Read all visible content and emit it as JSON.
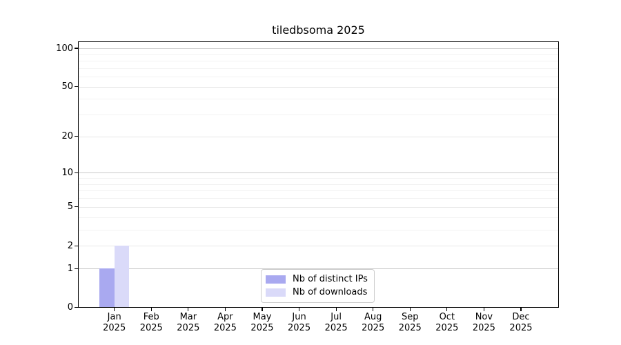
{
  "chart_data": {
    "type": "bar",
    "title": "tiledbsoma 2025",
    "x_months": [
      "Jan",
      "Feb",
      "Mar",
      "Apr",
      "May",
      "Jun",
      "Jul",
      "Aug",
      "Sep",
      "Oct",
      "Nov",
      "Dec"
    ],
    "x_year": "2025",
    "series": [
      {
        "name": "Nb of distinct IPs",
        "color": "#a9a9f0",
        "values": [
          1,
          0,
          0,
          0,
          0,
          0,
          0,
          0,
          0,
          0,
          0,
          0
        ]
      },
      {
        "name": "Nb of downloads",
        "color": "#dadaf9",
        "values": [
          2,
          0,
          0,
          0,
          0,
          0,
          0,
          0,
          0,
          0,
          0,
          0
        ]
      }
    ],
    "y_scale": "log1p",
    "ylim": [
      0,
      113
    ],
    "y_ticks": [
      0,
      1,
      2,
      5,
      10,
      20,
      50,
      100
    ],
    "y_tick_labels": [
      "0",
      "1",
      "2",
      "5",
      "10",
      "20",
      "50",
      "100"
    ],
    "y_major_gridlines": [
      1,
      10,
      100
    ],
    "y_mid_gridlines": [
      2,
      5,
      20,
      50
    ],
    "y_minor_gridlines": [
      3,
      4,
      6,
      7,
      8,
      9,
      30,
      40,
      60,
      70,
      80,
      90
    ],
    "grid": true,
    "legend_position": "lower center"
  }
}
